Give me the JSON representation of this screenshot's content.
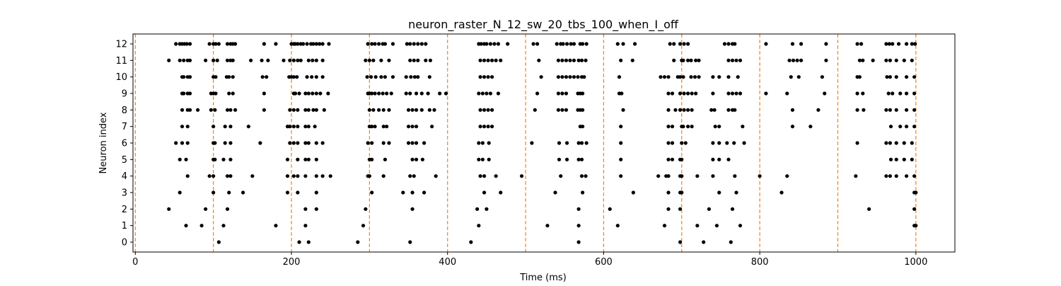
{
  "chart_data": {
    "type": "scatter",
    "title": "neuron_raster_N_12_sw_20_tbs_100_when_I_off",
    "xlabel": "Time (ms)",
    "ylabel": "Neuron index",
    "xlim": [
      -3,
      1050
    ],
    "ylim": [
      -0.6,
      12.6
    ],
    "xticks": [
      0,
      200,
      400,
      600,
      800,
      1000
    ],
    "yticks": [
      0,
      1,
      2,
      3,
      4,
      5,
      6,
      7,
      8,
      9,
      10,
      11,
      12
    ],
    "grid": false,
    "legend": "none",
    "marker_color": "#000000",
    "vline_color": "#ff7f0e",
    "vlines": [
      0,
      100,
      200,
      300,
      400,
      500,
      600,
      700,
      800,
      900,
      1000
    ],
    "spikes": [
      {
        "neuron": 12,
        "times": [
          52,
          57,
          60,
          63,
          66,
          70,
          95,
          100,
          103,
          107,
          118,
          122,
          125,
          128,
          165,
          180,
          200,
          203,
          205,
          208,
          212,
          215,
          220,
          225,
          228,
          232,
          236,
          240,
          248,
          298,
          303,
          307,
          312,
          317,
          320,
          330,
          348,
          352,
          357,
          362,
          367,
          372,
          440,
          443,
          447,
          450,
          455,
          460,
          465,
          477,
          510,
          515,
          540,
          545,
          548,
          553,
          558,
          562,
          570,
          573,
          578,
          618,
          625,
          640,
          685,
          690,
          698,
          703,
          708,
          755,
          760,
          765,
          768,
          808,
          842,
          853,
          885,
          925,
          930,
          962,
          966,
          970,
          978,
          988,
          995,
          999
        ]
      },
      {
        "neuron": 11,
        "times": [
          43,
          57,
          62,
          67,
          70,
          90,
          100,
          105,
          118,
          122,
          125,
          148,
          162,
          170,
          190,
          198,
          203,
          208,
          212,
          222,
          227,
          232,
          240,
          295,
          300,
          305,
          315,
          325,
          352,
          357,
          362,
          372,
          378,
          442,
          447,
          452,
          457,
          462,
          468,
          517,
          542,
          547,
          552,
          557,
          562,
          568,
          572,
          577,
          622,
          637,
          690,
          700,
          702,
          708,
          712,
          718,
          722,
          760,
          765,
          770,
          775,
          838,
          843,
          848,
          853,
          885,
          928,
          932,
          945,
          962,
          967,
          975,
          985,
          995
        ]
      },
      {
        "neuron": 10,
        "times": [
          60,
          62,
          67,
          70,
          100,
          103,
          117,
          120,
          125,
          163,
          168,
          197,
          200,
          203,
          207,
          220,
          226,
          232,
          240,
          297,
          302,
          308,
          315,
          320,
          330,
          347,
          353,
          358,
          362,
          377,
          442,
          447,
          452,
          457,
          520,
          542,
          547,
          552,
          557,
          562,
          567,
          572,
          575,
          620,
          673,
          678,
          683,
          695,
          698,
          702,
          712,
          717,
          722,
          740,
          748,
          760,
          772,
          840,
          850,
          880,
          925,
          928,
          963,
          967,
          975,
          988,
          998
        ]
      },
      {
        "neuron": 9,
        "times": [
          60,
          62,
          67,
          70,
          97,
          100,
          103,
          120,
          125,
          165,
          203,
          205,
          210,
          218,
          222,
          227,
          232,
          237,
          247,
          298,
          300,
          303,
          307,
          312,
          317,
          322,
          328,
          347,
          352,
          360,
          367,
          375,
          390,
          398,
          440,
          445,
          450,
          455,
          465,
          515,
          542,
          547,
          552,
          567,
          570,
          573,
          620,
          623,
          683,
          688,
          698,
          703,
          708,
          713,
          718,
          740,
          760,
          765,
          770,
          775,
          808,
          835,
          883,
          925,
          932,
          965,
          970,
          980,
          988,
          998
        ]
      },
      {
        "neuron": 8,
        "times": [
          60,
          67,
          70,
          80,
          97,
          102,
          118,
          122,
          128,
          165,
          198,
          203,
          208,
          218,
          222,
          228,
          232,
          242,
          300,
          305,
          312,
          318,
          325,
          350,
          355,
          360,
          367,
          377,
          383,
          442,
          447,
          452,
          457,
          512,
          542,
          547,
          552,
          567,
          570,
          573,
          625,
          683,
          692,
          698,
          703,
          708,
          713,
          738,
          742,
          760,
          765,
          768,
          842,
          875,
          925,
          933,
          962,
          967,
          975,
          988,
          998
        ]
      },
      {
        "neuron": 7,
        "times": [
          60,
          67,
          100,
          115,
          122,
          145,
          195,
          198,
          203,
          208,
          218,
          222,
          230,
          300,
          303,
          307,
          318,
          322,
          350,
          355,
          360,
          380,
          442,
          447,
          452,
          457,
          570,
          573,
          622,
          683,
          688,
          700,
          702,
          708,
          713,
          743,
          748,
          778,
          842,
          865,
          968,
          980,
          988,
          998
        ]
      },
      {
        "neuron": 6,
        "times": [
          52,
          60,
          67,
          100,
          102,
          115,
          122,
          160,
          198,
          203,
          208,
          218,
          222,
          232,
          240,
          298,
          303,
          318,
          325,
          350,
          355,
          360,
          370,
          440,
          445,
          453,
          508,
          543,
          553,
          568,
          572,
          578,
          622,
          683,
          688,
          700,
          705,
          740,
          748,
          758,
          767,
          780,
          925,
          962,
          967,
          975,
          985,
          995
        ]
      },
      {
        "neuron": 5,
        "times": [
          57,
          65,
          100,
          102,
          113,
          122,
          195,
          208,
          218,
          222,
          232,
          300,
          303,
          320,
          355,
          360,
          368,
          440,
          445,
          453,
          543,
          553,
          568,
          572,
          622,
          683,
          688,
          698,
          700,
          740,
          748,
          760,
          968,
          975,
          985,
          995
        ]
      },
      {
        "neuron": 4,
        "times": [
          67,
          95,
          100,
          118,
          122,
          150,
          195,
          203,
          208,
          218,
          232,
          240,
          250,
          298,
          300,
          318,
          352,
          357,
          385,
          442,
          447,
          462,
          495,
          545,
          572,
          577,
          622,
          670,
          680,
          683,
          698,
          700,
          720,
          740,
          768,
          800,
          835,
          923,
          962,
          967,
          975,
          988,
          998
        ]
      },
      {
        "neuron": 3,
        "times": [
          57,
          100,
          120,
          138,
          195,
          208,
          232,
          303,
          343,
          355,
          370,
          447,
          468,
          538,
          573,
          638,
          683,
          698,
          700,
          748,
          770,
          828,
          998,
          1000
        ]
      },
      {
        "neuron": 2,
        "times": [
          43,
          90,
          118,
          218,
          232,
          295,
          355,
          438,
          450,
          568,
          608,
          683,
          698,
          735,
          765,
          940,
          998
        ]
      },
      {
        "neuron": 1,
        "times": [
          65,
          85,
          113,
          180,
          218,
          292,
          440,
          528,
          568,
          618,
          678,
          720,
          745,
          775,
          998,
          1000
        ]
      },
      {
        "neuron": 0,
        "times": [
          107,
          210,
          222,
          285,
          352,
          430,
          568,
          698,
          728,
          763
        ]
      }
    ]
  }
}
